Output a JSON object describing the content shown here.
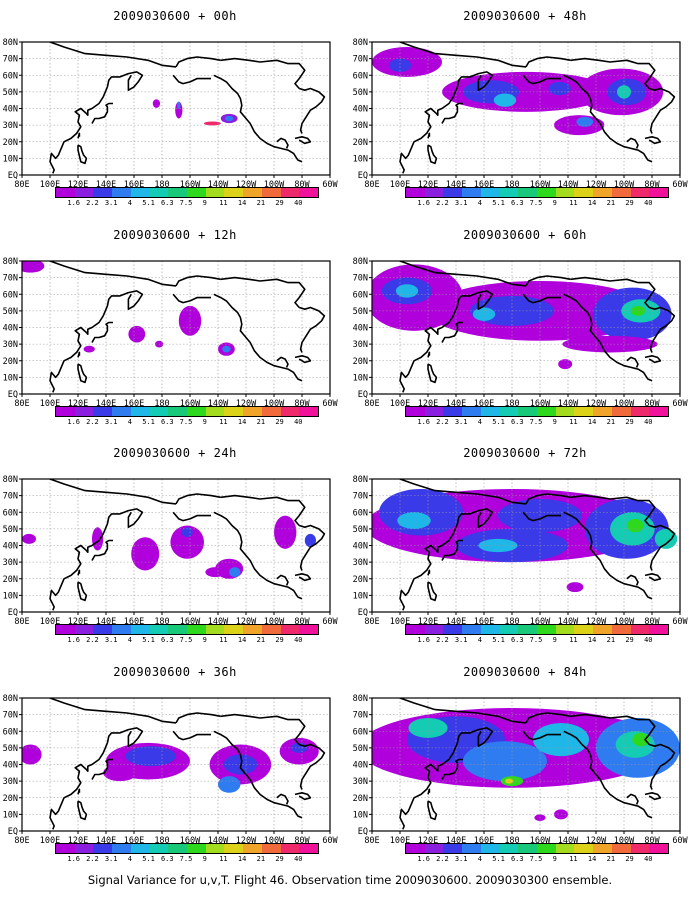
{
  "figure": {
    "caption": "Signal Variance for u,v,T. Flight 46. Observation time 2009030600. 2009030300 ensemble."
  },
  "colorbar": {
    "labels": [
      "1.6",
      "2.2",
      "3.1",
      "4",
      "5.1",
      "6.3",
      "7.5",
      "9",
      "11",
      "14",
      "21",
      "29",
      "40"
    ],
    "colors": [
      "#b000dc",
      "#8b1fe0",
      "#3a3ae8",
      "#2f7bf0",
      "#1fb6e8",
      "#14cbb4",
      "#19c97a",
      "#2ed81c",
      "#a3db1f",
      "#ddd21a",
      "#f0a52a",
      "#f06a3b",
      "#ee2a6a",
      "#f0129a"
    ]
  },
  "axes": {
    "lon_ticks": [
      "80E",
      "100E",
      "120E",
      "140E",
      "160E",
      "180",
      "160W",
      "140W",
      "120W",
      "100W",
      "80W",
      "60W"
    ],
    "lat_ticks": [
      "EQ",
      "10N",
      "20N",
      "30N",
      "40N",
      "50N",
      "60N",
      "70N",
      "80N"
    ]
  },
  "colors": {
    "land_outline": "#000000",
    "grid": "#9a9a9a"
  },
  "panels": [
    {
      "title": "2009030600 + 00h",
      "col": 0,
      "row": 0,
      "blobs": [
        {
          "lon": 176,
          "lat": 43,
          "rx": 2.6,
          "ry": 2.6,
          "level": 0
        },
        {
          "lon": 192,
          "lat": 39,
          "rx": 2.6,
          "ry": 5,
          "level": 0
        },
        {
          "lon": 192,
          "lat": 42,
          "rx": 1.2,
          "ry": 2.2,
          "level": 3
        },
        {
          "lon": 228,
          "lat": 34,
          "rx": 6,
          "ry": 2.8,
          "level": 1
        },
        {
          "lon": 228,
          "lat": 34,
          "rx": 3,
          "ry": 1.6,
          "level": 3
        },
        {
          "lon": 216,
          "lat": 31,
          "rx": 6,
          "ry": 1.2,
          "level": 12
        }
      ]
    },
    {
      "title": "2009030600 + 12h",
      "col": 0,
      "row": 1,
      "blobs": [
        {
          "lon": 86,
          "lat": 77,
          "rx": 10,
          "ry": 4,
          "level": 0
        },
        {
          "lon": 128,
          "lat": 27,
          "rx": 4,
          "ry": 2,
          "level": 0
        },
        {
          "lon": 162,
          "lat": 36,
          "rx": 6,
          "ry": 5,
          "level": 0
        },
        {
          "lon": 200,
          "lat": 44,
          "rx": 8,
          "ry": 9,
          "level": 0
        },
        {
          "lon": 226,
          "lat": 27,
          "rx": 6,
          "ry": 4,
          "level": 0
        },
        {
          "lon": 226,
          "lat": 27,
          "rx": 3,
          "ry": 2,
          "level": 3
        },
        {
          "lon": 178,
          "lat": 30,
          "rx": 3,
          "ry": 2,
          "level": 0
        }
      ]
    },
    {
      "title": "2009030600 + 24h",
      "col": 0,
      "row": 2,
      "blobs": [
        {
          "lon": 85,
          "lat": 44,
          "rx": 5,
          "ry": 3,
          "level": 0
        },
        {
          "lon": 134,
          "lat": 44,
          "rx": 4,
          "ry": 7,
          "level": 0
        },
        {
          "lon": 168,
          "lat": 35,
          "rx": 10,
          "ry": 10,
          "level": 0
        },
        {
          "lon": 198,
          "lat": 42,
          "rx": 12,
          "ry": 10,
          "level": 0
        },
        {
          "lon": 198,
          "lat": 48,
          "rx": 4,
          "ry": 3,
          "level": 2
        },
        {
          "lon": 228,
          "lat": 26,
          "rx": 10,
          "ry": 6,
          "level": 0
        },
        {
          "lon": 232,
          "lat": 24,
          "rx": 4,
          "ry": 3,
          "level": 3
        },
        {
          "lon": 218,
          "lat": 24,
          "rx": 7,
          "ry": 3,
          "level": 0
        },
        {
          "lon": 268,
          "lat": 48,
          "rx": 8,
          "ry": 10,
          "level": 0
        },
        {
          "lon": 286,
          "lat": 43,
          "rx": 4,
          "ry": 4,
          "level": 2
        }
      ]
    },
    {
      "title": "2009030600 + 36h",
      "col": 0,
      "row": 3,
      "blobs": [
        {
          "lon": 86,
          "lat": 46,
          "rx": 8,
          "ry": 6,
          "level": 0
        },
        {
          "lon": 170,
          "lat": 42,
          "rx": 30,
          "ry": 11,
          "level": 0
        },
        {
          "lon": 172,
          "lat": 45,
          "rx": 18,
          "ry": 6,
          "level": 2
        },
        {
          "lon": 236,
          "lat": 40,
          "rx": 22,
          "ry": 12,
          "level": 0
        },
        {
          "lon": 236,
          "lat": 40,
          "rx": 12,
          "ry": 6,
          "level": 2
        },
        {
          "lon": 228,
          "lat": 28,
          "rx": 8,
          "ry": 5,
          "level": 3
        },
        {
          "lon": 278,
          "lat": 48,
          "rx": 14,
          "ry": 8,
          "level": 0
        },
        {
          "lon": 278,
          "lat": 50,
          "rx": 6,
          "ry": 3,
          "level": 2
        },
        {
          "lon": 150,
          "lat": 35,
          "rx": 12,
          "ry": 5,
          "level": 0
        }
      ]
    },
    {
      "title": "2009030600 + 48h",
      "col": 1,
      "row": 0,
      "blobs": [
        {
          "lon": 105,
          "lat": 68,
          "rx": 25,
          "ry": 9,
          "level": 0
        },
        {
          "lon": 100,
          "lat": 66,
          "rx": 8,
          "ry": 4,
          "level": 2
        },
        {
          "lon": 190,
          "lat": 50,
          "rx": 60,
          "ry": 12,
          "level": 0
        },
        {
          "lon": 165,
          "lat": 50,
          "rx": 20,
          "ry": 7,
          "level": 2
        },
        {
          "lon": 175,
          "lat": 45,
          "rx": 8,
          "ry": 4,
          "level": 4
        },
        {
          "lon": 214,
          "lat": 52,
          "rx": 8,
          "ry": 4,
          "level": 2
        },
        {
          "lon": 258,
          "lat": 50,
          "rx": 30,
          "ry": 14,
          "level": 0
        },
        {
          "lon": 262,
          "lat": 50,
          "rx": 14,
          "ry": 8,
          "level": 2
        },
        {
          "lon": 260,
          "lat": 50,
          "rx": 5,
          "ry": 4,
          "level": 5
        },
        {
          "lon": 228,
          "lat": 30,
          "rx": 18,
          "ry": 6,
          "level": 0
        },
        {
          "lon": 232,
          "lat": 32,
          "rx": 6,
          "ry": 3,
          "level": 3
        }
      ]
    },
    {
      "title": "2009030600 + 60h",
      "col": 1,
      "row": 1,
      "blobs": [
        {
          "lon": 110,
          "lat": 58,
          "rx": 35,
          "ry": 20,
          "level": 0
        },
        {
          "lon": 105,
          "lat": 62,
          "rx": 18,
          "ry": 8,
          "level": 2
        },
        {
          "lon": 105,
          "lat": 62,
          "rx": 8,
          "ry": 4,
          "level": 4
        },
        {
          "lon": 200,
          "lat": 50,
          "rx": 80,
          "ry": 18,
          "level": 0
        },
        {
          "lon": 180,
          "lat": 50,
          "rx": 30,
          "ry": 9,
          "level": 2
        },
        {
          "lon": 160,
          "lat": 48,
          "rx": 8,
          "ry": 4,
          "level": 4
        },
        {
          "lon": 266,
          "lat": 48,
          "rx": 28,
          "ry": 16,
          "level": 2
        },
        {
          "lon": 272,
          "lat": 50,
          "rx": 14,
          "ry": 7,
          "level": 5
        },
        {
          "lon": 270,
          "lat": 50,
          "rx": 5,
          "ry": 3,
          "level": 7
        },
        {
          "lon": 250,
          "lat": 30,
          "rx": 34,
          "ry": 5,
          "level": 0
        },
        {
          "lon": 218,
          "lat": 18,
          "rx": 5,
          "ry": 3,
          "level": 0
        }
      ]
    },
    {
      "title": "2009030600 + 72h",
      "col": 1,
      "row": 2,
      "blobs": [
        {
          "lon": 180,
          "lat": 52,
          "rx": 105,
          "ry": 22,
          "level": 0
        },
        {
          "lon": 115,
          "lat": 60,
          "rx": 30,
          "ry": 14,
          "level": 2
        },
        {
          "lon": 110,
          "lat": 55,
          "rx": 12,
          "ry": 5,
          "level": 4
        },
        {
          "lon": 180,
          "lat": 40,
          "rx": 40,
          "ry": 10,
          "level": 2
        },
        {
          "lon": 170,
          "lat": 40,
          "rx": 14,
          "ry": 4,
          "level": 4
        },
        {
          "lon": 200,
          "lat": 58,
          "rx": 30,
          "ry": 10,
          "level": 2
        },
        {
          "lon": 262,
          "lat": 50,
          "rx": 30,
          "ry": 18,
          "level": 2
        },
        {
          "lon": 266,
          "lat": 50,
          "rx": 16,
          "ry": 10,
          "level": 5
        },
        {
          "lon": 268,
          "lat": 52,
          "rx": 6,
          "ry": 4,
          "level": 7
        },
        {
          "lon": 290,
          "lat": 44,
          "rx": 8,
          "ry": 6,
          "level": 5
        },
        {
          "lon": 225,
          "lat": 15,
          "rx": 6,
          "ry": 3,
          "level": 0
        }
      ]
    },
    {
      "title": "2009030600 + 84h",
      "col": 1,
      "row": 3,
      "blobs": [
        {
          "lon": 180,
          "lat": 50,
          "rx": 110,
          "ry": 24,
          "level": 0
        },
        {
          "lon": 140,
          "lat": 55,
          "rx": 35,
          "ry": 14,
          "level": 2
        },
        {
          "lon": 120,
          "lat": 62,
          "rx": 14,
          "ry": 6,
          "level": 5
        },
        {
          "lon": 175,
          "lat": 42,
          "rx": 30,
          "ry": 12,
          "level": 3
        },
        {
          "lon": 180,
          "lat": 30,
          "rx": 8,
          "ry": 3,
          "level": 7
        },
        {
          "lon": 178,
          "lat": 30,
          "rx": 3,
          "ry": 1.5,
          "level": 9
        },
        {
          "lon": 215,
          "lat": 55,
          "rx": 20,
          "ry": 10,
          "level": 4
        },
        {
          "lon": 270,
          "lat": 50,
          "rx": 30,
          "ry": 18,
          "level": 3
        },
        {
          "lon": 268,
          "lat": 52,
          "rx": 14,
          "ry": 8,
          "level": 5
        },
        {
          "lon": 272,
          "lat": 55,
          "rx": 6,
          "ry": 4,
          "level": 7
        },
        {
          "lon": 215,
          "lat": 10,
          "rx": 5,
          "ry": 3,
          "level": 0
        },
        {
          "lon": 200,
          "lat": 8,
          "rx": 4,
          "ry": 2,
          "level": 0
        }
      ]
    }
  ]
}
